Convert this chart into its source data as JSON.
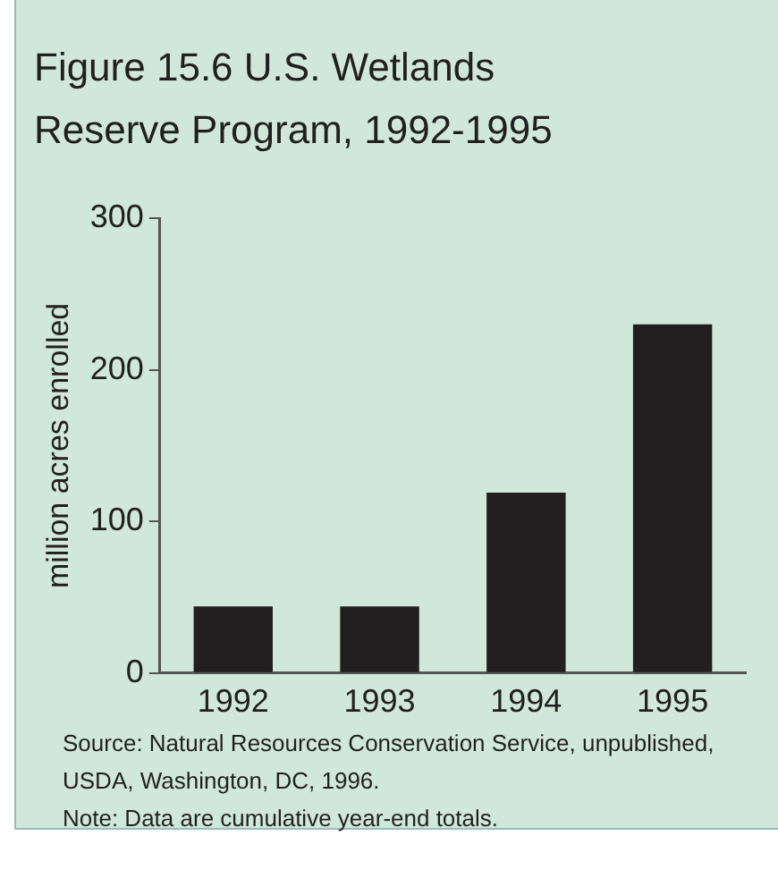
{
  "chart_data": {
    "type": "bar",
    "title": "Figure 15.6  U.S. Wetlands Reserve Program, 1992-1995",
    "ylabel": "million acres enrolled",
    "categories": [
      "1992",
      "1993",
      "1994",
      "1995"
    ],
    "values": [
      44,
      44,
      119,
      230
    ],
    "color": "#231f20",
    "ylim": [
      0,
      300
    ],
    "yticks": [
      0,
      100,
      200,
      300
    ],
    "grid": false,
    "annotations": [
      "Source: Natural Resources Conservation Service, unpublished, USDA, Washington, DC, 1996.",
      "Note: Data are cumulative year-end totals."
    ]
  }
}
